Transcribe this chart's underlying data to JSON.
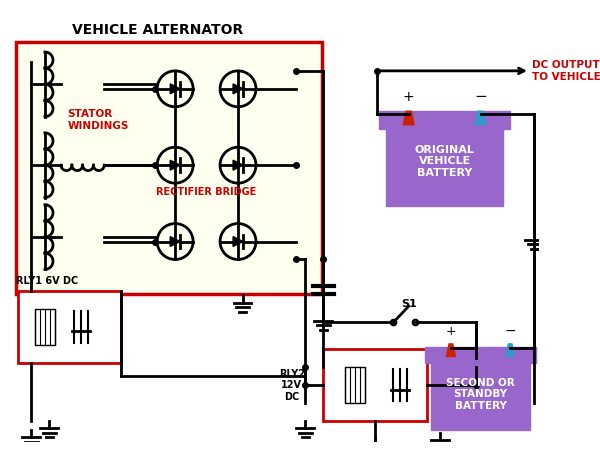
{
  "title": "VEHICLE ALTERNATOR",
  "bg_color": "#ffffff",
  "alternator_bg": "#fffff0",
  "alternator_border": "#cc0000",
  "text_red": "#cc0000",
  "text_black": "#000000",
  "battery_color": "#9966cc",
  "wire_color": "#000000",
  "stator_label": "STATOR\nWINDINGS",
  "rectifier_label": "RECTIFIER BRIDGE",
  "dc_output_label": "DC OUTPUT\nTO VEHICLE",
  "battery1_label": "ORIGINAL\nVEHICLE\nBATTERY",
  "battery2_label": "SECOND OR\nSTANDBY\nBATTERY",
  "rly1_label": "RLY1 6V DC",
  "rly2_label": "RLY2\n12V\nDC",
  "s1_label": "S1"
}
